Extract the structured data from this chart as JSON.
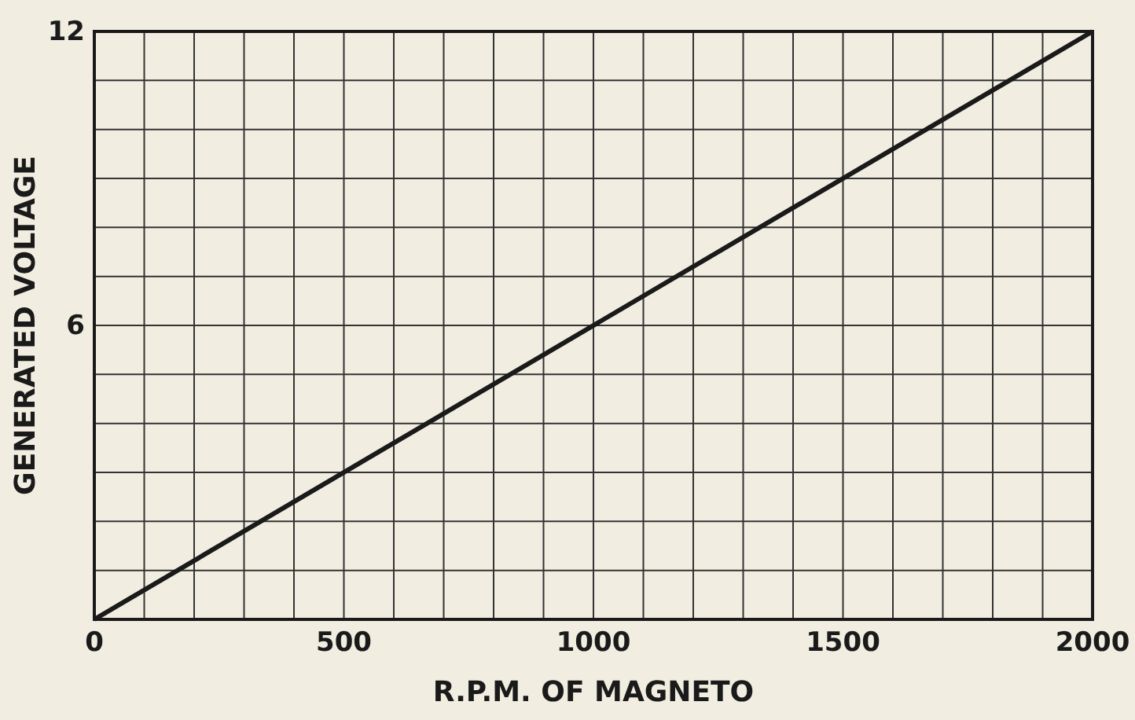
{
  "chart_data": {
    "type": "line",
    "xlabel": "R.P.M. OF MAGNETO",
    "ylabel": "GENERATED VOLTAGE",
    "x": [
      0,
      2000
    ],
    "series": [
      {
        "color": "#1a1a1a",
        "values": [
          0,
          12
        ]
      }
    ],
    "xlim": [
      0,
      2000
    ],
    "ylim": [
      0,
      12
    ],
    "xticks": [
      0,
      {
        "value": 100,
        "label": null
      },
      {
        "value": 200,
        "label": null
      },
      {
        "value": 300,
        "label": null
      },
      {
        "value": 400,
        "label": null
      },
      500,
      {
        "value": 600,
        "label": null
      },
      {
        "value": 700,
        "label": null
      },
      {
        "value": 800,
        "label": null
      },
      {
        "value": 900,
        "label": null
      },
      1000,
      {
        "value": 1100,
        "label": null
      },
      {
        "value": 1200,
        "label": null
      },
      {
        "value": 1300,
        "label": null
      },
      {
        "value": 1400,
        "label": null
      },
      1500,
      {
        "value": 1600,
        "label": null
      },
      {
        "value": 1700,
        "label": null
      },
      {
        "value": 1800,
        "label": null
      },
      {
        "value": 1900,
        "label": null
      },
      2000
    ],
    "yticks": [
      {
        "value": 0,
        "label": null
      },
      {
        "value": 1,
        "label": null
      },
      {
        "value": 2,
        "label": null
      },
      {
        "value": 3,
        "label": null
      },
      {
        "value": 4,
        "label": null
      },
      {
        "value": 5,
        "label": null
      },
      6,
      {
        "value": 7,
        "label": null
      },
      {
        "value": 8,
        "label": null
      },
      {
        "value": 9,
        "label": null
      },
      {
        "value": 10,
        "label": null
      },
      {
        "value": 11,
        "label": null
      },
      12
    ],
    "grid": true,
    "marker": "none",
    "line_style": "solid"
  }
}
